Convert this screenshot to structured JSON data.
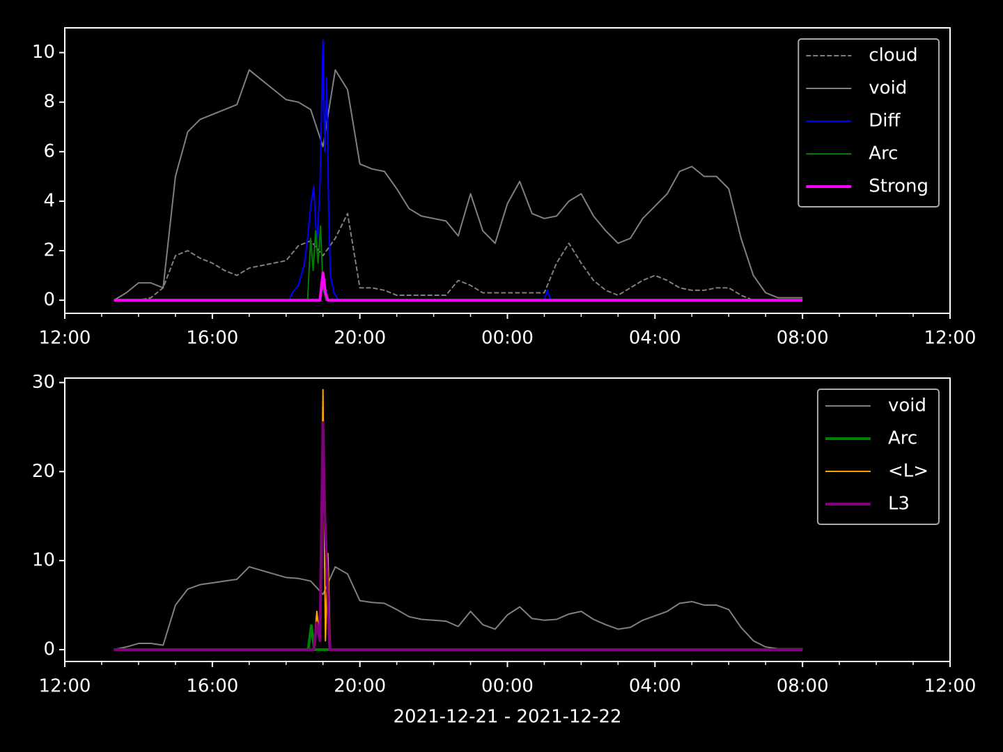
{
  "chart_data": [
    {
      "type": "line",
      "xlim": [
        "2021-12-21T12:00",
        "2021-12-22T12:00"
      ],
      "xticks": [
        {
          "value": "2021-12-21T12:00",
          "label": "12:00"
        },
        {
          "value": "2021-12-21T16:00",
          "label": "16:00"
        },
        {
          "value": "2021-12-21T20:00",
          "label": "20:00"
        },
        {
          "value": "2021-12-22T00:00",
          "label": "00:00"
        },
        {
          "value": "2021-12-22T04:00",
          "label": "04:00"
        },
        {
          "value": "2021-12-22T08:00",
          "label": "08:00"
        },
        {
          "value": "2021-12-22T12:00",
          "label": "12:00"
        }
      ],
      "xminorticks": [
        "2021-12-21T13:00",
        "2021-12-21T14:00",
        "2021-12-21T15:00",
        "2021-12-21T17:00",
        "2021-12-21T18:00",
        "2021-12-21T19:00",
        "2021-12-21T21:00",
        "2021-12-21T22:00",
        "2021-12-21T23:00",
        "2021-12-22T01:00",
        "2021-12-22T02:00",
        "2021-12-22T03:00",
        "2021-12-22T05:00",
        "2021-12-22T06:00",
        "2021-12-22T07:00",
        "2021-12-22T09:00",
        "2021-12-22T10:00",
        "2021-12-22T11:00"
      ],
      "ylim": [
        -0.53,
        11.0
      ],
      "yticks": [
        0,
        2,
        4,
        6,
        8,
        10
      ],
      "legend": "upper right",
      "x": [
        "2021-12-21T13:20",
        "2021-12-21T13:40",
        "2021-12-21T14:00",
        "2021-12-21T14:20",
        "2021-12-21T14:40",
        "2021-12-21T15:00",
        "2021-12-21T15:20",
        "2021-12-21T15:40",
        "2021-12-21T16:00",
        "2021-12-21T16:20",
        "2021-12-21T16:40",
        "2021-12-21T17:00",
        "2021-12-21T17:20",
        "2021-12-21T17:40",
        "2021-12-21T18:00",
        "2021-12-21T18:20",
        "2021-12-21T18:40",
        "2021-12-21T19:00",
        "2021-12-21T19:20",
        "2021-12-21T19:40",
        "2021-12-21T20:00",
        "2021-12-21T20:20",
        "2021-12-21T20:40",
        "2021-12-21T21:00",
        "2021-12-21T21:20",
        "2021-12-21T21:40",
        "2021-12-21T22:00",
        "2021-12-21T22:20",
        "2021-12-21T22:40",
        "2021-12-21T23:00",
        "2021-12-21T23:20",
        "2021-12-21T23:40",
        "2021-12-22T00:00",
        "2021-12-22T00:20",
        "2021-12-22T00:40",
        "2021-12-22T01:00",
        "2021-12-22T01:20",
        "2021-12-22T01:40",
        "2021-12-22T02:00",
        "2021-12-22T02:20",
        "2021-12-22T02:40",
        "2021-12-22T03:00",
        "2021-12-22T03:20",
        "2021-12-22T03:40",
        "2021-12-22T04:00",
        "2021-12-22T04:20",
        "2021-12-22T04:40",
        "2021-12-22T05:00",
        "2021-12-22T05:20",
        "2021-12-22T05:40",
        "2021-12-22T06:00",
        "2021-12-22T06:20",
        "2021-12-22T06:40",
        "2021-12-22T07:00",
        "2021-12-22T07:20",
        "2021-12-22T07:40",
        "2021-12-22T08:00"
      ],
      "series": [
        {
          "name": "cloud",
          "color": "#808080",
          "style": "dashed",
          "values": [
            0,
            0,
            0,
            0.1,
            0.5,
            1.8,
            2.0,
            1.7,
            1.5,
            1.2,
            1.0,
            1.3,
            1.4,
            1.5,
            1.6,
            2.2,
            2.4,
            1.8,
            2.5,
            3.5,
            0.5,
            0.5,
            0.4,
            0.2,
            0.2,
            0.2,
            0.2,
            0.2,
            0.8,
            0.6,
            0.3,
            0.3,
            0.3,
            0.3,
            0.3,
            0.3,
            1.5,
            2.3,
            1.5,
            0.8,
            0.4,
            0.2,
            0.5,
            0.8,
            1.0,
            0.8,
            0.5,
            0.4,
            0.4,
            0.5,
            0.5,
            0.2,
            0,
            0,
            0,
            0,
            0
          ]
        },
        {
          "name": "void",
          "color": "#808080",
          "style": "thin",
          "values": [
            0.0,
            0.3,
            0.7,
            0.7,
            0.5,
            5.0,
            6.8,
            7.3,
            7.5,
            7.7,
            7.9,
            9.3,
            8.9,
            8.5,
            8.1,
            8.0,
            7.7,
            6.2,
            9.3,
            8.5,
            5.5,
            5.3,
            5.2,
            4.5,
            3.7,
            3.4,
            3.3,
            3.2,
            2.6,
            4.3,
            2.8,
            2.3,
            3.9,
            4.8,
            3.5,
            3.3,
            3.4,
            4.0,
            4.3,
            3.4,
            2.8,
            2.3,
            2.5,
            3.3,
            3.8,
            4.3,
            5.2,
            5.4,
            5.0,
            5.0,
            4.5,
            2.5,
            1.0,
            0.3,
            0.1,
            0.1,
            0.1
          ]
        },
        {
          "name": "Diff",
          "color": "#0000ff",
          "style": "thin",
          "x": [
            "2021-12-21T13:20",
            "2021-12-21T18:05",
            "2021-12-21T18:10",
            "2021-12-21T18:20",
            "2021-12-21T18:30",
            "2021-12-21T18:35",
            "2021-12-21T18:40",
            "2021-12-21T18:45",
            "2021-12-21T18:50",
            "2021-12-21T18:55",
            "2021-12-21T19:00",
            "2021-12-21T19:03",
            "2021-12-21T19:06",
            "2021-12-21T19:09",
            "2021-12-21T19:12",
            "2021-12-21T19:18",
            "2021-12-21T19:25",
            "2021-12-22T01:00",
            "2021-12-22T01:05",
            "2021-12-22T01:10",
            "2021-12-22T08:00"
          ],
          "values": [
            0,
            0,
            0.3,
            0.6,
            1.5,
            2.5,
            3.8,
            4.6,
            2.2,
            4.5,
            10.5,
            6,
            9,
            4,
            1,
            0.3,
            0,
            0,
            0.4,
            0,
            0
          ]
        },
        {
          "name": "Arc",
          "color": "#008000",
          "style": "thin",
          "x": [
            "2021-12-21T13:20",
            "2021-12-21T18:35",
            "2021-12-21T18:40",
            "2021-12-21T18:44",
            "2021-12-21T18:48",
            "2021-12-21T18:52",
            "2021-12-21T18:56",
            "2021-12-21T19:00",
            "2021-12-21T19:05",
            "2021-12-22T08:00"
          ],
          "values": [
            0,
            0,
            2.5,
            1.2,
            2.8,
            1.5,
            3.0,
            0.5,
            0,
            0
          ]
        },
        {
          "name": "Strong",
          "color": "#ff00ff",
          "style": "thick",
          "x": [
            "2021-12-21T13:20",
            "2021-12-21T18:55",
            "2021-12-21T19:00",
            "2021-12-21T19:04",
            "2021-12-21T19:08",
            "2021-12-22T08:00"
          ],
          "values": [
            0,
            0,
            1.1,
            0.3,
            0,
            0
          ]
        }
      ]
    },
    {
      "type": "line",
      "xlabel": "2021-12-21 - 2021-12-22",
      "xlim": [
        "2021-12-21T12:00",
        "2021-12-22T12:00"
      ],
      "xticks": [
        {
          "value": "2021-12-21T12:00",
          "label": "12:00"
        },
        {
          "value": "2021-12-21T16:00",
          "label": "16:00"
        },
        {
          "value": "2021-12-21T20:00",
          "label": "20:00"
        },
        {
          "value": "2021-12-22T00:00",
          "label": "00:00"
        },
        {
          "value": "2021-12-22T04:00",
          "label": "04:00"
        },
        {
          "value": "2021-12-22T08:00",
          "label": "08:00"
        },
        {
          "value": "2021-12-22T12:00",
          "label": "12:00"
        }
      ],
      "xminorticks": [
        "2021-12-21T13:00",
        "2021-12-21T14:00",
        "2021-12-21T15:00",
        "2021-12-21T17:00",
        "2021-12-21T18:00",
        "2021-12-21T19:00",
        "2021-12-21T21:00",
        "2021-12-21T22:00",
        "2021-12-21T23:00",
        "2021-12-22T01:00",
        "2021-12-22T02:00",
        "2021-12-22T03:00",
        "2021-12-22T05:00",
        "2021-12-22T06:00",
        "2021-12-22T07:00",
        "2021-12-22T09:00",
        "2021-12-22T10:00",
        "2021-12-22T11:00"
      ],
      "ylim": [
        -1.33,
        30.5
      ],
      "yticks": [
        0,
        10,
        20,
        30
      ],
      "legend": "upper right",
      "x": [
        "2021-12-21T13:20",
        "2021-12-21T13:40",
        "2021-12-21T14:00",
        "2021-12-21T14:20",
        "2021-12-21T14:40",
        "2021-12-21T15:00",
        "2021-12-21T15:20",
        "2021-12-21T15:40",
        "2021-12-21T16:00",
        "2021-12-21T16:20",
        "2021-12-21T16:40",
        "2021-12-21T17:00",
        "2021-12-21T17:20",
        "2021-12-21T17:40",
        "2021-12-21T18:00",
        "2021-12-21T18:20",
        "2021-12-21T18:40",
        "2021-12-21T19:00",
        "2021-12-21T19:20",
        "2021-12-21T19:40",
        "2021-12-21T20:00",
        "2021-12-21T20:20",
        "2021-12-21T20:40",
        "2021-12-21T21:00",
        "2021-12-21T21:20",
        "2021-12-21T21:40",
        "2021-12-21T22:00",
        "2021-12-21T22:20",
        "2021-12-21T22:40",
        "2021-12-21T23:00",
        "2021-12-21T23:20",
        "2021-12-21T23:40",
        "2021-12-22T00:00",
        "2021-12-22T00:20",
        "2021-12-22T00:40",
        "2021-12-22T01:00",
        "2021-12-22T01:20",
        "2021-12-22T01:40",
        "2021-12-22T02:00",
        "2021-12-22T02:20",
        "2021-12-22T02:40",
        "2021-12-22T03:00",
        "2021-12-22T03:20",
        "2021-12-22T03:40",
        "2021-12-22T04:00",
        "2021-12-22T04:20",
        "2021-12-22T04:40",
        "2021-12-22T05:00",
        "2021-12-22T05:20",
        "2021-12-22T05:40",
        "2021-12-22T06:00",
        "2021-12-22T06:20",
        "2021-12-22T06:40",
        "2021-12-22T07:00",
        "2021-12-22T07:20",
        "2021-12-22T07:40",
        "2021-12-22T08:00"
      ],
      "series": [
        {
          "name": "void",
          "color": "#808080",
          "style": "thin",
          "values": [
            0.0,
            0.3,
            0.7,
            0.7,
            0.5,
            5.0,
            6.8,
            7.3,
            7.5,
            7.7,
            7.9,
            9.3,
            8.9,
            8.5,
            8.1,
            8.0,
            7.7,
            6.2,
            9.3,
            8.5,
            5.5,
            5.3,
            5.2,
            4.5,
            3.7,
            3.4,
            3.3,
            3.2,
            2.6,
            4.3,
            2.8,
            2.3,
            3.9,
            4.8,
            3.5,
            3.3,
            3.4,
            4.0,
            4.3,
            3.4,
            2.8,
            2.3,
            2.5,
            3.3,
            3.8,
            4.3,
            5.2,
            5.4,
            5.0,
            5.0,
            4.5,
            2.5,
            1.0,
            0.3,
            0.1,
            0.1,
            0.1
          ]
        },
        {
          "name": "Arc",
          "color": "#008000",
          "style": "thick",
          "x": [
            "2021-12-21T13:20",
            "2021-12-21T18:36",
            "2021-12-21T18:41",
            "2021-12-21T18:46",
            "2021-12-22T08:00"
          ],
          "values": [
            0,
            0,
            2.7,
            0,
            0
          ]
        },
        {
          "name": "<L>",
          "color": "#ffa500",
          "style": "thin",
          "x": [
            "2021-12-21T13:20",
            "2021-12-21T18:45",
            "2021-12-21T18:50",
            "2021-12-21T18:55",
            "2021-12-21T19:00",
            "2021-12-21T19:04",
            "2021-12-21T19:08",
            "2021-12-21T19:12",
            "2021-12-22T08:00"
          ],
          "values": [
            0,
            0,
            4.3,
            1,
            29.2,
            1,
            10.8,
            0,
            0
          ]
        },
        {
          "name": "L3",
          "color": "#800080",
          "style": "thick",
          "x": [
            "2021-12-21T13:20",
            "2021-12-21T18:45",
            "2021-12-21T18:50",
            "2021-12-21T18:55",
            "2021-12-21T19:00",
            "2021-12-21T19:03",
            "2021-12-21T19:07",
            "2021-12-21T19:11",
            "2021-12-22T08:00"
          ],
          "values": [
            0,
            0,
            3,
            1,
            25.5,
            15,
            8,
            0,
            0
          ]
        }
      ]
    }
  ]
}
